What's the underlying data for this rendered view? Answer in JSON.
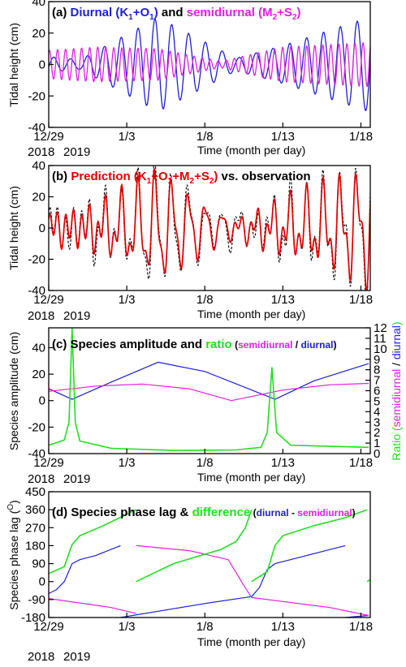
{
  "colors": {
    "diurnal": "#1f1fd6",
    "semidiurnal": "#e020e0",
    "green": "#20e020",
    "prediction": "#e00000",
    "observation": "#000000"
  },
  "xaxis": {
    "ticks": [
      0,
      5,
      10,
      15,
      20
    ],
    "labels": [
      "12/29",
      "1/3",
      "1/8",
      "1/13",
      "1/18"
    ],
    "label": "Time (month per day)",
    "years": [
      "2018",
      "2019"
    ],
    "range": [
      0,
      20.6
    ]
  },
  "chart_data": [
    {
      "type": "line",
      "title": {
        "p1": "(a) ",
        "p2": "Diurnal (K",
        "p2s": "1",
        "p3": "+O",
        "p3s": "1",
        "p4": ")",
        "p5": " and ",
        "p6": "semidiurnal (M",
        "p6s": "2",
        "p7": "+S",
        "p7s": "2",
        "p8": ")"
      },
      "ylabel": "Tidal height (cm)",
      "ylim": [
        -40,
        40
      ],
      "yticks": [
        -40,
        -20,
        0,
        20,
        40
      ],
      "series": [
        {
          "color": "diurnal",
          "envelope": [
            [
              0,
              5
            ],
            [
              2,
              3
            ],
            [
              7,
              30
            ],
            [
              12,
              4
            ],
            [
              15,
              12
            ],
            [
              20.5,
              30
            ]
          ],
          "period": 1.08,
          "phase": 0.3
        },
        {
          "color": "semidiurnal",
          "envelope": [
            [
              0,
              9
            ],
            [
              3,
              11
            ],
            [
              7,
              10
            ],
            [
              11,
              2
            ],
            [
              15,
              11
            ],
            [
              20.5,
              14
            ]
          ],
          "period": 0.515,
          "phase": 0.1
        }
      ]
    },
    {
      "type": "line",
      "title": {
        "p1": "(b) ",
        "p2": "Prediction (K",
        "p2s": "1",
        "p3": "+O",
        "p3s": "1",
        "p4": "+M",
        "p4s": "2",
        "p5": "+S",
        "p5s": "2",
        "p6": ")",
        "p7": " vs. observation"
      },
      "ylabel": "Tidal height (cm)",
      "ylim": [
        -40,
        40
      ],
      "yticks": [
        -40,
        -20,
        0,
        20,
        40
      ],
      "series": [
        {
          "name": "Prediction",
          "color": "prediction"
        },
        {
          "name": "observation",
          "color": "observation",
          "dashed": true
        }
      ]
    },
    {
      "type": "line",
      "title": {
        "p1": "(c) Species amplitude and ",
        "p2": "ratio",
        "p3": " (",
        "p4": "semidiurnal",
        "p5": " / ",
        "p6": "diurnal",
        "p7": ")"
      },
      "ylabel": "Species amplitude (cm)",
      "ylim": [
        -40,
        55
      ],
      "yticks": [
        -40,
        -20,
        0,
        20,
        40
      ],
      "y2label_a": "Ratio (",
      "y2label_b": "semidiurnal",
      "y2label_c": " / ",
      "y2label_d": "diurnal",
      "y2label_e": ")",
      "y2lim": [
        0,
        12
      ],
      "y2ticks": [
        0,
        1,
        2,
        3,
        4,
        5,
        6,
        7,
        8,
        9,
        10,
        11,
        12
      ],
      "series": [
        {
          "name": "diurnal",
          "color": "diurnal",
          "points": [
            [
              0,
              9
            ],
            [
              1.5,
              1
            ],
            [
              4,
              14
            ],
            [
              7,
              29
            ],
            [
              10,
              22
            ],
            [
              14.5,
              1
            ],
            [
              17,
              15
            ],
            [
              20.5,
              28
            ]
          ]
        },
        {
          "name": "semidiurnal",
          "color": "semidiurnal",
          "points": [
            [
              0,
              7
            ],
            [
              3,
              11
            ],
            [
              6,
              12.5
            ],
            [
              9,
              9
            ],
            [
              11.7,
              0
            ],
            [
              15,
              8
            ],
            [
              18,
              12
            ],
            [
              20.5,
              13
            ]
          ]
        },
        {
          "name": "ratio",
          "color": "green",
          "axis": "right",
          "points": [
            [
              0,
              0.8
            ],
            [
              1,
              1.3
            ],
            [
              1.3,
              3
            ],
            [
              1.5,
              12
            ],
            [
              1.7,
              3
            ],
            [
              2,
              1.2
            ],
            [
              4,
              0.5
            ],
            [
              8,
              0.3
            ],
            [
              12,
              0.35
            ],
            [
              13.6,
              0.6
            ],
            [
              14,
              2
            ],
            [
              14.3,
              8.2
            ],
            [
              14.6,
              2
            ],
            [
              15.5,
              0.8
            ],
            [
              20.5,
              0.6
            ]
          ]
        }
      ]
    },
    {
      "type": "line",
      "title": {
        "p1": "(d) Species phase lag & ",
        "p2": "difference",
        "p3": " (",
        "p4": "diurnal",
        "p5": " - ",
        "p6": "semidiurnal",
        "p7": ")"
      },
      "ylabel": "Species phase lag (",
      "ylabel_sup": "O",
      "ylabel_end": ")",
      "ylim": [
        -180,
        450
      ],
      "yticks": [
        -180,
        -90,
        0,
        90,
        180,
        270,
        360,
        450
      ],
      "series": [
        {
          "name": "diurnal",
          "color": "diurnal",
          "points": [
            [
              0,
              -60
            ],
            [
              0.5,
              -40
            ],
            [
              1,
              0
            ],
            [
              1.5,
              90
            ],
            [
              2,
              110
            ],
            [
              3,
              130
            ],
            [
              4.6,
              180
            ],
            [
              4.6,
              -180
            ],
            [
              10,
              -110
            ],
            [
              13,
              -75
            ],
            [
              13.5,
              -30
            ],
            [
              14,
              60
            ],
            [
              14.5,
              90
            ],
            [
              16,
              120
            ],
            [
              18,
              160
            ],
            [
              19,
              180
            ],
            [
              19,
              -180
            ],
            [
              20.5,
              -170
            ]
          ]
        },
        {
          "name": "semidiurnal",
          "color": "semidiurnal",
          "points": [
            [
              0,
              -85
            ],
            [
              4,
              -130
            ],
            [
              5.6,
              -160
            ],
            [
              5.6,
              180
            ],
            [
              9,
              155
            ],
            [
              11.5,
              110
            ],
            [
              12.5,
              -20
            ],
            [
              13,
              -80
            ],
            [
              15,
              -100
            ],
            [
              18,
              -130
            ],
            [
              20.5,
              -170
            ]
          ]
        },
        {
          "name": "difference",
          "color": "green",
          "points": [
            [
              0,
              40
            ],
            [
              1,
              75
            ],
            [
              1.5,
              185
            ],
            [
              2,
              230
            ],
            [
              3.5,
              280
            ],
            [
              5.6,
              360
            ],
            [
              5.6,
              0
            ],
            [
              8,
              90
            ],
            [
              11,
              160
            ],
            [
              12,
              200
            ],
            [
              12.6,
              270
            ],
            [
              13,
              360
            ],
            [
              13,
              0
            ],
            [
              14,
              50
            ],
            [
              14.5,
              180
            ],
            [
              15,
              230
            ],
            [
              17,
              280
            ],
            [
              19,
              320
            ],
            [
              20.4,
              360
            ],
            [
              20.4,
              0
            ],
            [
              20.6,
              10
            ]
          ]
        }
      ]
    }
  ]
}
